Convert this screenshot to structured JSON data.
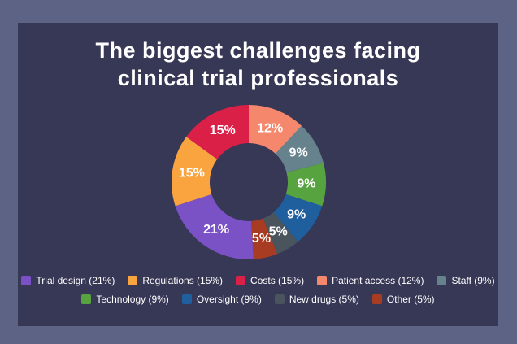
{
  "frame": {
    "outer_background": "#5C6384",
    "panel_background": "#373756"
  },
  "title": {
    "line1": "The biggest challenges facing",
    "line2": "clinical trial professionals"
  },
  "chart_data": {
    "type": "pie",
    "title": "The biggest challenges facing clinical trial professionals",
    "donut": true,
    "start_angle_deg": 0,
    "direction": "clockwise",
    "outer_radius": 95,
    "inner_radius": 48,
    "label_radius": 71,
    "segments": [
      {
        "label": "Patient access",
        "value": 12,
        "display": "12%",
        "color": "#F5886C"
      },
      {
        "label": "Staff",
        "value": 9,
        "display": "9%",
        "color": "#66828D"
      },
      {
        "label": "Technology",
        "value": 9,
        "display": "9%",
        "color": "#57A33F"
      },
      {
        "label": "Oversight",
        "value": 9,
        "display": "9%",
        "color": "#1F5F9E"
      },
      {
        "label": "New drugs",
        "value": 5,
        "display": "5%",
        "color": "#4A545C"
      },
      {
        "label": "Other",
        "value": 5,
        "display": "5%",
        "color": "#A83C22"
      },
      {
        "label": "Trial design",
        "value": 21,
        "display": "21%",
        "color": "#7B51C6"
      },
      {
        "label": "Regulations",
        "value": 15,
        "display": "15%",
        "color": "#FAA43F"
      },
      {
        "label": "Costs",
        "value": 15,
        "display": "15%",
        "color": "#DB2048"
      }
    ],
    "legend_position": "bottom"
  },
  "legend": {
    "rows": [
      [
        {
          "label": "Trial design (21%)",
          "color": "#7B51C6"
        },
        {
          "label": "Regulations (15%)",
          "color": "#FAA43F"
        },
        {
          "label": "Costs (15%)",
          "color": "#DB2048"
        },
        {
          "label": "Patient access (12%)",
          "color": "#F5886C"
        },
        {
          "label": "Staff (9%)",
          "color": "#66828D"
        }
      ],
      [
        {
          "label": "Technology (9%)",
          "color": "#57A33F"
        },
        {
          "label": "Oversight (9%)",
          "color": "#1F5F9E"
        },
        {
          "label": "New drugs (5%)",
          "color": "#4A545C"
        },
        {
          "label": "Other (5%)",
          "color": "#A83C22"
        }
      ]
    ]
  }
}
